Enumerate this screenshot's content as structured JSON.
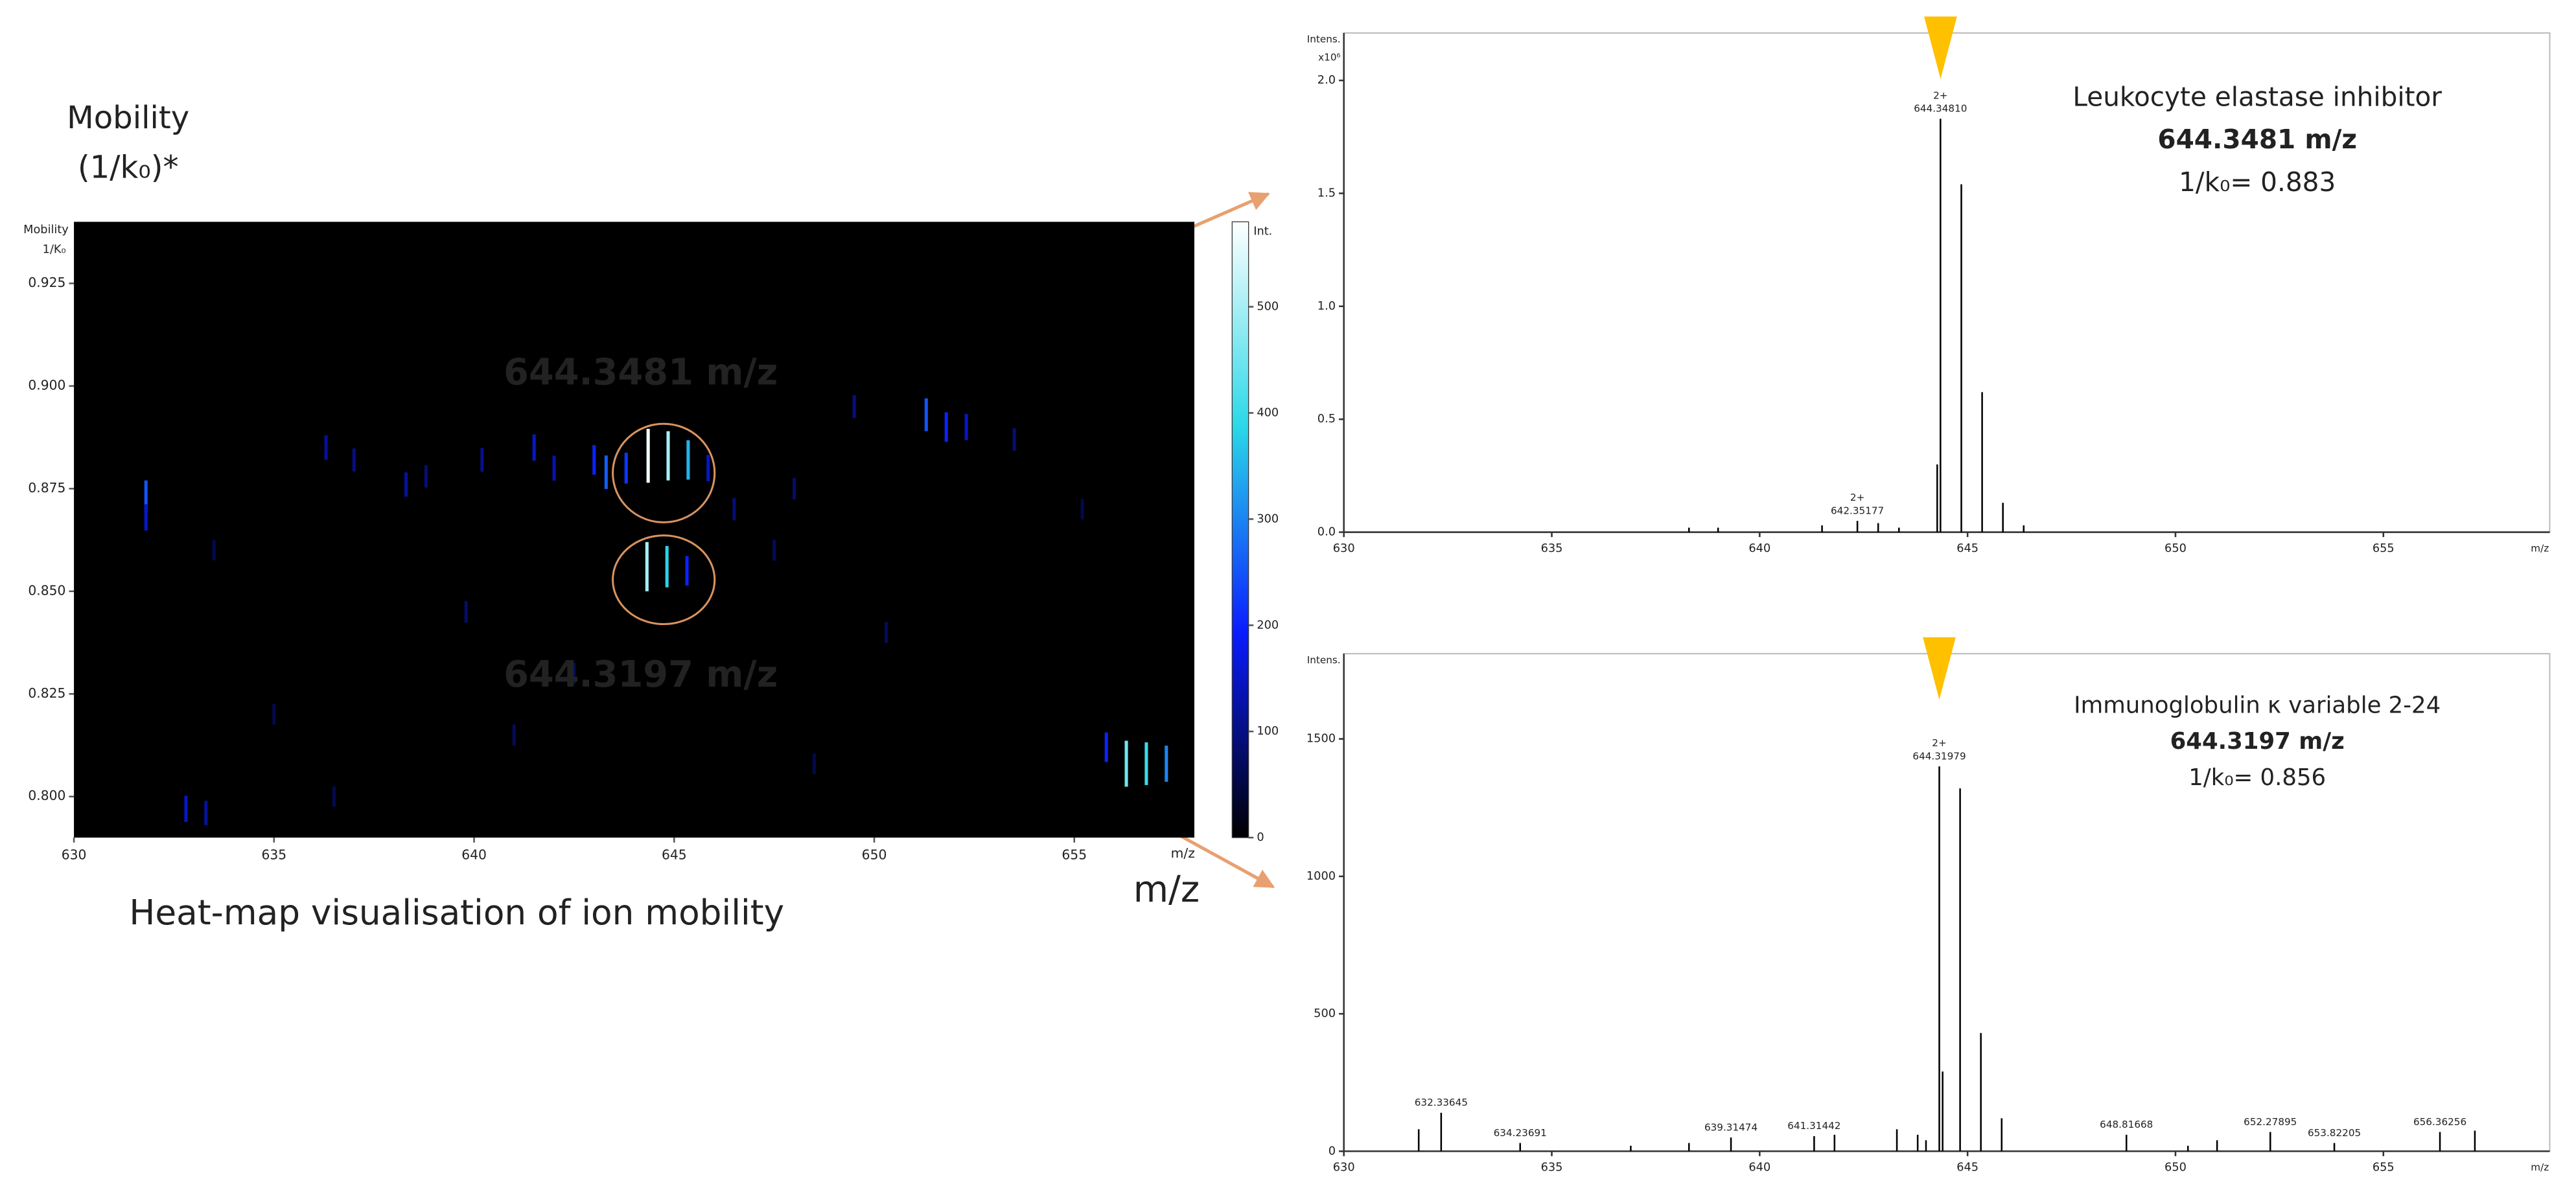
{
  "chart_data": [
    {
      "type": "heatmap",
      "ylabel": [
        "Mobility",
        "(1/k₀)*"
      ],
      "inner_ylabel": [
        "Mobility",
        "1/K₀"
      ],
      "xlabel": "m/z",
      "inner_xlabel": "m/z",
      "caption": "Heat-map visualisation of ion mobility",
      "annotations": [
        {
          "text": "644.3481 m/z"
        },
        {
          "text": "644.3197 m/z"
        }
      ],
      "annotation_color": "#F5C000",
      "xlim": [
        630,
        658
      ],
      "xticks": [
        630,
        635,
        640,
        645,
        650,
        655
      ],
      "ylim": [
        0.79,
        0.94
      ],
      "yticks": [
        {
          "value": 0.8,
          "label": "0.800"
        },
        0.825,
        {
          "value": 0.85,
          "label": "0.850"
        },
        0.875,
        {
          "value": 0.9,
          "label": "0.900"
        },
        0.925
      ],
      "colorbar_label": "Int.",
      "clim": [
        0,
        580
      ],
      "cticks": [
        0,
        100,
        200,
        300,
        400,
        500
      ],
      "colormap": [
        "#000000",
        "#0a1cff",
        "#2ad8e8",
        "#ffffff"
      ],
      "x": [
        631.8,
        631.8,
        636.3,
        637.0,
        638.3,
        638.8,
        640.2,
        641.5,
        642.0,
        643.0,
        643.3,
        643.8,
        644.35,
        644.85,
        645.35,
        645.85,
        644.32,
        644.82,
        645.32,
        648.0,
        649.5,
        651.3,
        651.8,
        652.3,
        656.3,
        656.8,
        657.3,
        655.8,
        632.8,
        633.3,
        635.0,
        639.8,
        642.5,
        646.5,
        647.5,
        633.5,
        650.3,
        653.5,
        655.2,
        636.5,
        641.0,
        648.5
      ],
      "y": [
        0.873,
        0.868,
        0.885,
        0.882,
        0.876,
        0.878,
        0.882,
        0.885,
        0.88,
        0.882,
        0.879,
        0.88,
        0.883,
        0.883,
        0.882,
        0.88,
        0.856,
        0.856,
        0.855,
        0.875,
        0.895,
        0.893,
        0.89,
        0.89,
        0.808,
        0.808,
        0.808,
        0.812,
        0.797,
        0.796,
        0.82,
        0.845,
        0.83,
        0.87,
        0.86,
        0.86,
        0.84,
        0.887,
        0.87,
        0.8,
        0.815,
        0.808
      ],
      "values": [
        250,
        150,
        120,
        100,
        120,
        90,
        110,
        150,
        130,
        200,
        260,
        220,
        570,
        500,
        350,
        150,
        500,
        380,
        200,
        80,
        100,
        250,
        200,
        150,
        450,
        400,
        300,
        200,
        150,
        120,
        60,
        80,
        70,
        90,
        70,
        60,
        70,
        90,
        60,
        60,
        70,
        60
      ]
    },
    {
      "type": "spectrum",
      "ylabel": "Intens.",
      "y_multiplier": "x10⁶",
      "xlabel": "m/z",
      "color": "#000000",
      "annotations": [
        {
          "text": "Leukocyte elastase inhibitor"
        },
        {
          "text": "644.3481 m/z"
        },
        {
          "text": "1/k₀= 0.883"
        }
      ],
      "marker_x": 644.35,
      "marker_color": "#FFC000",
      "xlim": [
        630,
        659
      ],
      "xticks": [
        630,
        635,
        640,
        645,
        650,
        655
      ],
      "ylim": [
        0,
        2.21
      ],
      "yticks": [
        {
          "value": 0,
          "label": "0.0"
        },
        0.5,
        {
          "value": 1,
          "label": "1.0"
        },
        1.5,
        {
          "value": 2,
          "label": "2.0"
        }
      ],
      "x": [
        638.3,
        639.0,
        641.5,
        642.35,
        642.85,
        643.35,
        644.27,
        644.348,
        644.85,
        645.35,
        645.85,
        646.35
      ],
      "values": [
        0.02,
        0.02,
        0.03,
        0.05,
        0.04,
        0.02,
        0.3,
        1.83,
        1.54,
        0.62,
        0.13,
        0.03
      ],
      "peak_labels": [
        {
          "x": 644.348,
          "charge": "2+",
          "label": "644.34810"
        },
        {
          "x": 642.35,
          "charge": "2+",
          "label": "642.35177"
        }
      ]
    },
    {
      "type": "spectrum",
      "ylabel": "Intens.",
      "xlabel": "m/z",
      "color": "#000000",
      "annotations": [
        {
          "text": "Immunoglobulin κ variable 2-24"
        },
        {
          "text": "644.3197 m/z"
        },
        {
          "text": "1/k₀= 0.856"
        }
      ],
      "marker_x": 644.32,
      "marker_color": "#FFC000",
      "xlim": [
        630,
        659
      ],
      "xticks": [
        630,
        635,
        640,
        645,
        650,
        655
      ],
      "ylim": [
        0,
        1810
      ],
      "yticks": [
        0,
        500,
        1000,
        1500
      ],
      "x": [
        631.8,
        632.34,
        634.24,
        636.9,
        638.3,
        639.31,
        641.31,
        641.8,
        643.3,
        643.8,
        644.0,
        644.32,
        644.4,
        644.82,
        645.32,
        645.82,
        648.82,
        650.3,
        651.0,
        652.28,
        653.82,
        656.36,
        657.2
      ],
      "values": [
        80,
        140,
        30,
        20,
        30,
        50,
        55,
        60,
        80,
        60,
        40,
        1400,
        290,
        1320,
        430,
        120,
        60,
        20,
        40,
        70,
        30,
        70,
        75
      ],
      "peak_labels": [
        {
          "x": 632.34,
          "label": "632.33645"
        },
        {
          "x": 634.24,
          "label": "634.23691"
        },
        {
          "x": 639.31,
          "label": "639.31474"
        },
        {
          "x": 641.31,
          "label": "641.31442"
        },
        {
          "x": 644.32,
          "charge": "2+",
          "label": "644.31979"
        },
        {
          "x": 648.82,
          "label": "648.81668"
        },
        {
          "x": 652.28,
          "label": "652.27895"
        },
        {
          "x": 653.82,
          "label": "653.82205"
        },
        {
          "x": 656.36,
          "label": "656.36256"
        }
      ]
    }
  ]
}
